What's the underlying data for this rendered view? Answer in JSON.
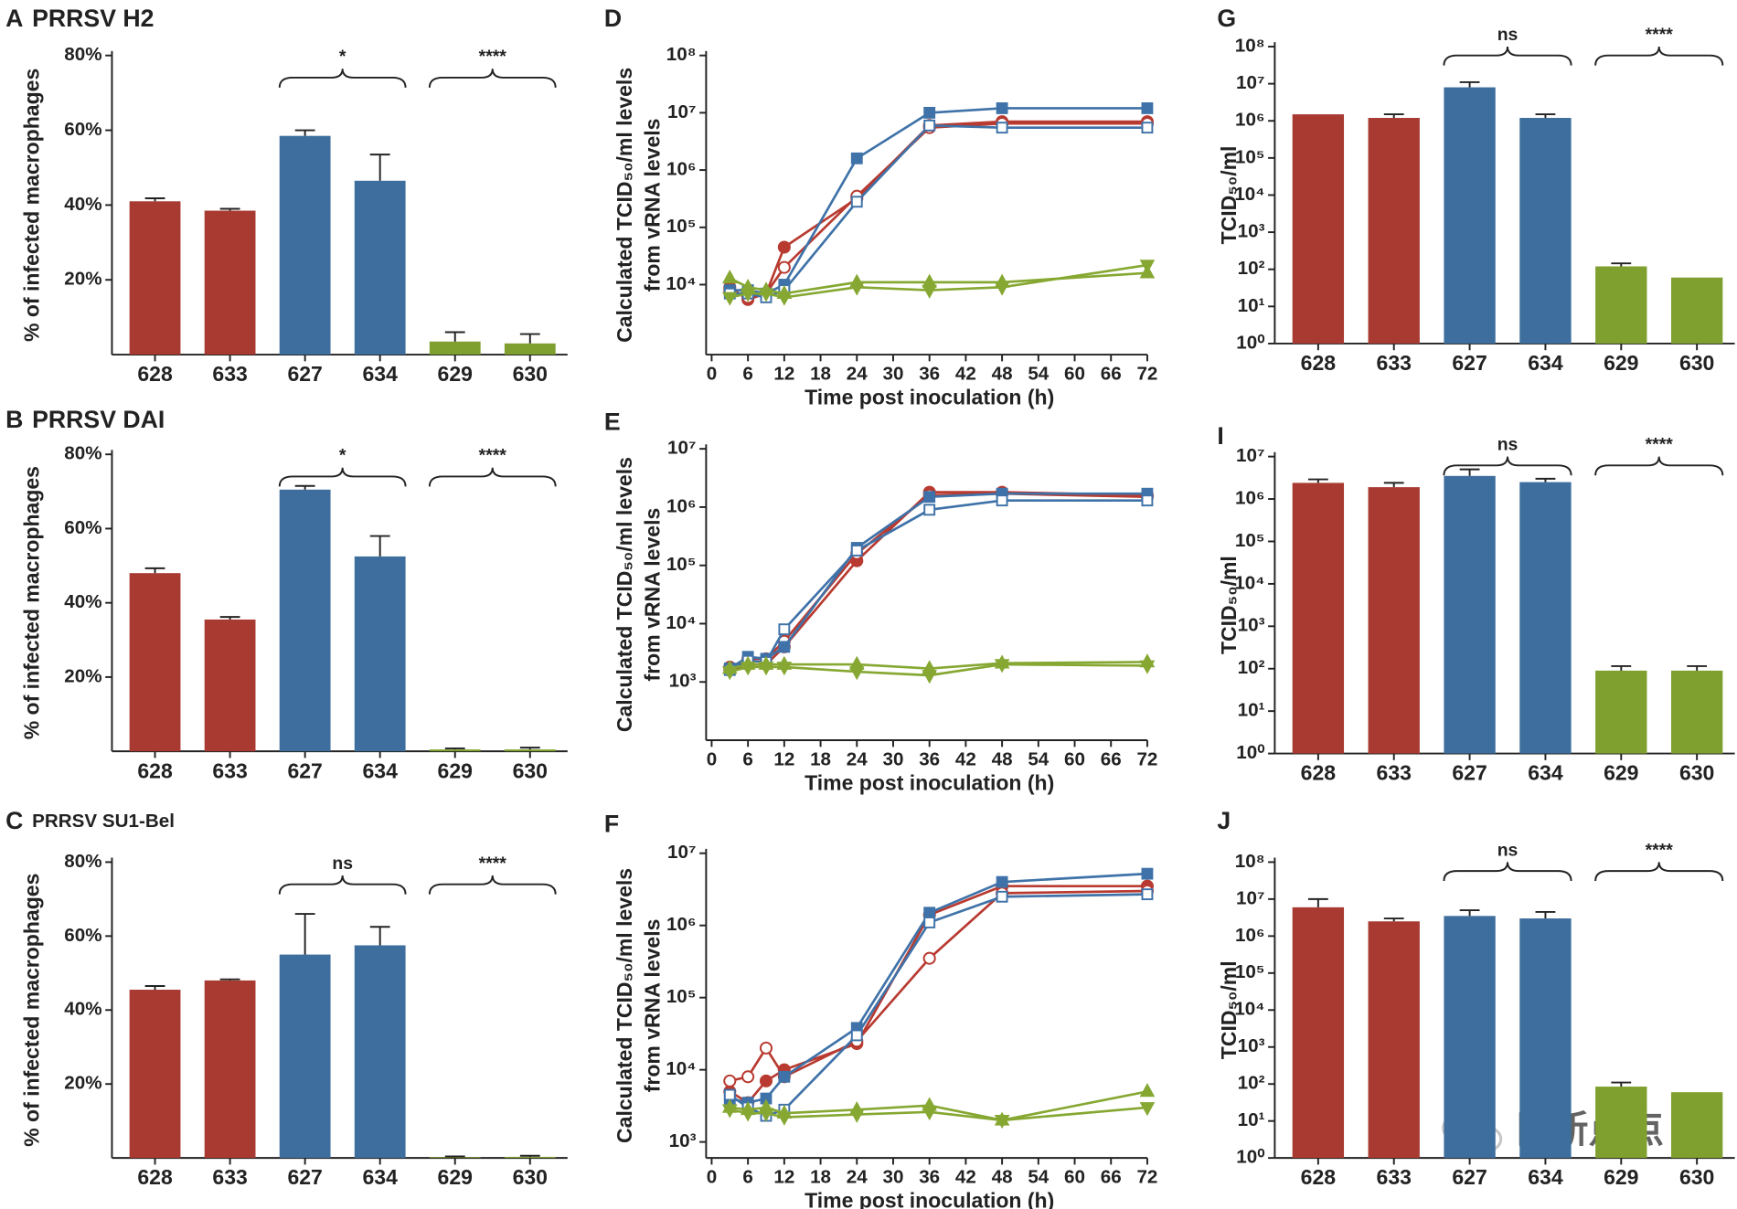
{
  "chart_data": [
    {
      "type": "bar",
      "panel": "A",
      "title": "PRRSV H2",
      "ylabel": "% of infected macrophages",
      "categories": [
        "628",
        "633",
        "627",
        "634",
        "629",
        "630"
      ],
      "values": [
        41,
        38.5,
        58.5,
        46.5,
        3.5,
        3
      ],
      "errors": [
        0.8,
        0.5,
        1.5,
        7,
        2.5,
        2.5
      ],
      "colors": [
        "#a83a32",
        "#a83a32",
        "#3e6e9e",
        "#3e6e9e",
        "#7f9f2e",
        "#7f9f2e"
      ],
      "ylim": [
        0,
        80
      ],
      "yticks": [
        {
          "value": 20,
          "label": "20%"
        },
        {
          "value": 40,
          "label": "40%"
        },
        {
          "value": 60,
          "label": "60%"
        },
        {
          "value": 80,
          "label": "80%"
        }
      ],
      "annotations": [
        {
          "text": "*",
          "span": [
            "627",
            "634"
          ]
        },
        {
          "text": "****",
          "span": [
            "629",
            "630"
          ]
        }
      ]
    },
    {
      "type": "bar",
      "panel": "B",
      "title": "PRRSV DAI",
      "ylabel": "% of infected macrophages",
      "categories": [
        "628",
        "633",
        "627",
        "634",
        "629",
        "630"
      ],
      "values": [
        48,
        35.5,
        70.5,
        52.5,
        0.5,
        0.5
      ],
      "errors": [
        1.3,
        0.7,
        1,
        5.5,
        0.3,
        0.5
      ],
      "colors": [
        "#a83a32",
        "#a83a32",
        "#3e6e9e",
        "#3e6e9e",
        "#7f9f2e",
        "#7f9f2e"
      ],
      "ylim": [
        0,
        80
      ],
      "yticks": [
        {
          "value": 20,
          "label": "20%"
        },
        {
          "value": 40,
          "label": "40%"
        },
        {
          "value": 60,
          "label": "60%"
        },
        {
          "value": 80,
          "label": "80%"
        }
      ],
      "annotations": [
        {
          "text": "*",
          "span": [
            "627",
            "634"
          ]
        },
        {
          "text": "****",
          "span": [
            "629",
            "630"
          ]
        }
      ]
    },
    {
      "type": "bar",
      "panel": "C",
      "title": "PRRSV SU1-Bel",
      "ylabel": "% of infected macrophages",
      "categories": [
        "628",
        "633",
        "627",
        "634",
        "629",
        "630"
      ],
      "values": [
        45.5,
        48,
        55,
        57.5,
        0.2,
        0.3
      ],
      "errors": [
        1,
        0.3,
        11,
        5,
        0.2,
        0.3
      ],
      "colors": [
        "#a83a32",
        "#a83a32",
        "#3e6e9e",
        "#3e6e9e",
        "#7f9f2e",
        "#7f9f2e"
      ],
      "ylim": [
        0,
        80
      ],
      "yticks": [
        {
          "value": 20,
          "label": "20%"
        },
        {
          "value": 40,
          "label": "40%"
        },
        {
          "value": 60,
          "label": "60%"
        },
        {
          "value": 80,
          "label": "80%"
        }
      ],
      "annotations": [
        {
          "text": "ns",
          "span": [
            "627",
            "634"
          ]
        },
        {
          "text": "****",
          "span": [
            "629",
            "630"
          ]
        }
      ]
    },
    {
      "type": "line",
      "panel": "D",
      "ylabel": [
        "Calculated TCID₅₀/ml levels",
        "from vRNA levels"
      ],
      "xlabel": "Time post inoculation (h)",
      "log_scale": true,
      "x": [
        3,
        6,
        9,
        12,
        24,
        36,
        48,
        72
      ],
      "xlim": [
        0,
        72
      ],
      "xticks": [
        0,
        6,
        12,
        18,
        24,
        30,
        36,
        42,
        48,
        54,
        60,
        66,
        72
      ],
      "ylim": [
        600,
        100000000
      ],
      "yticks": [
        {
          "value": 10000,
          "label": "10⁴"
        },
        {
          "value": 100000,
          "label": "10⁵"
        },
        {
          "value": 1000000,
          "label": "10⁶"
        },
        {
          "value": 10000000,
          "label": "10⁷"
        },
        {
          "value": 100000000,
          "label": "10⁸"
        }
      ],
      "series": [
        {
          "color": "#b83a30",
          "marker": "circle",
          "filled": true,
          "values": [
            9000,
            5500,
            7000,
            45000,
            320000,
            6000000,
            7000000,
            7000000
          ]
        },
        {
          "color": "#b83a30",
          "marker": "circle",
          "filled": false,
          "values": [
            8000,
            6000,
            7000,
            20000,
            350000,
            5500000,
            6500000,
            6500000
          ]
        },
        {
          "color": "#3f72a8",
          "marker": "square",
          "filled": true,
          "values": [
            8000,
            8000,
            7000,
            10000,
            1600000,
            10000000,
            12000000,
            12000000
          ]
        },
        {
          "color": "#3f72a8",
          "marker": "square",
          "filled": false,
          "values": [
            7000,
            7000,
            6000,
            8000,
            280000,
            6000000,
            5500000,
            5500000
          ]
        },
        {
          "color": "#86a832",
          "marker": "triangle-up",
          "filled": true,
          "values": [
            13000,
            9000,
            8000,
            7000,
            11000,
            11000,
            11000,
            16000
          ]
        },
        {
          "color": "#86a832",
          "marker": "triangle-down",
          "filled": true,
          "values": [
            6000,
            7000,
            7000,
            6000,
            9000,
            8000,
            9000,
            22000
          ]
        }
      ]
    },
    {
      "type": "line",
      "panel": "E",
      "ylabel": [
        "Calculated TCID₅₀/ml levels",
        "from vRNA levels"
      ],
      "xlabel": "Time post inoculation (h)",
      "log_scale": true,
      "x": [
        3,
        6,
        9,
        12,
        24,
        36,
        48,
        72
      ],
      "xlim": [
        0,
        72
      ],
      "xticks": [
        0,
        6,
        12,
        18,
        24,
        30,
        36,
        42,
        48,
        54,
        60,
        66,
        72
      ],
      "ylim": [
        100,
        10000000
      ],
      "yticks": [
        {
          "value": 1000,
          "label": "10³"
        },
        {
          "value": 10000,
          "label": "10⁴"
        },
        {
          "value": 100000,
          "label": "10⁵"
        },
        {
          "value": 1000000,
          "label": "10⁶"
        },
        {
          "value": 10000000,
          "label": "10⁷"
        }
      ],
      "series": [
        {
          "color": "#b83a30",
          "marker": "circle",
          "filled": true,
          "values": [
            1600,
            2000,
            2000,
            4000,
            120000,
            1800000,
            1800000,
            1600000
          ]
        },
        {
          "color": "#b83a30",
          "marker": "circle",
          "filled": false,
          "values": [
            1800,
            2500,
            2500,
            5000,
            160000,
            1600000,
            1700000,
            1500000
          ]
        },
        {
          "color": "#3f72a8",
          "marker": "square",
          "filled": true,
          "values": [
            1700,
            2700,
            2500,
            4000,
            200000,
            1500000,
            1700000,
            1700000
          ]
        },
        {
          "color": "#3f72a8",
          "marker": "square",
          "filled": false,
          "values": [
            1600,
            2300,
            2200,
            8000,
            180000,
            900000,
            1300000,
            1300000
          ]
        },
        {
          "color": "#86a832",
          "marker": "triangle-up",
          "filled": true,
          "values": [
            1700,
            2000,
            2000,
            2000,
            2000,
            1700,
            2100,
            2200
          ]
        },
        {
          "color": "#86a832",
          "marker": "triangle-down",
          "filled": true,
          "values": [
            1500,
            1800,
            1800,
            1800,
            1500,
            1300,
            2000,
            1900
          ]
        }
      ]
    },
    {
      "type": "line",
      "panel": "F",
      "ylabel": [
        "Calculated TCID₅₀/ml levels",
        "from vRNA levels"
      ],
      "xlabel": "Time post inoculation (h)",
      "log_scale": true,
      "x": [
        3,
        6,
        9,
        12,
        24,
        36,
        48,
        72
      ],
      "xlim": [
        0,
        72
      ],
      "xticks": [
        0,
        6,
        12,
        18,
        24,
        30,
        36,
        42,
        48,
        54,
        60,
        66,
        72
      ],
      "ylim": [
        600,
        10000000
      ],
      "yticks": [
        {
          "value": 1000,
          "label": "10³"
        },
        {
          "value": 10000,
          "label": "10⁴"
        },
        {
          "value": 100000,
          "label": "10⁵"
        },
        {
          "value": 1000000,
          "label": "10⁶"
        },
        {
          "value": 10000000,
          "label": "10⁷"
        }
      ],
      "series": [
        {
          "color": "#b83a30",
          "marker": "circle",
          "filled": true,
          "values": [
            5000,
            3500,
            7000,
            10000,
            23000,
            1400000,
            3500000,
            3500000
          ]
        },
        {
          "color": "#b83a30",
          "marker": "circle",
          "filled": false,
          "values": [
            7000,
            8000,
            20000,
            8000,
            25000,
            350000,
            2800000,
            3000000
          ]
        },
        {
          "color": "#3f72a8",
          "marker": "square",
          "filled": true,
          "values": [
            4000,
            3500,
            4000,
            8000,
            38000,
            1500000,
            4000000,
            5200000
          ]
        },
        {
          "color": "#3f72a8",
          "marker": "square",
          "filled": false,
          "values": [
            4500,
            3000,
            2300,
            2800,
            30000,
            1100000,
            2500000,
            2700000
          ]
        },
        {
          "color": "#86a832",
          "marker": "triangle-up",
          "filled": true,
          "values": [
            3000,
            2800,
            3000,
            2500,
            2800,
            3200,
            2000,
            5000
          ]
        },
        {
          "color": "#86a832",
          "marker": "triangle-down",
          "filled": true,
          "values": [
            2800,
            2500,
            2500,
            2200,
            2400,
            2600,
            2000,
            3000
          ]
        }
      ]
    },
    {
      "type": "bar",
      "panel": "G",
      "ylabel": "TCID₅₀/ml",
      "log_scale": true,
      "categories": [
        "628",
        "633",
        "627",
        "634",
        "629",
        "630"
      ],
      "values": [
        1500000,
        1200000,
        8000000,
        1200000,
        120,
        60
      ],
      "errors": [
        0,
        300000,
        3000000,
        300000,
        25,
        0
      ],
      "colors": [
        "#a83a32",
        "#a83a32",
        "#3e6e9e",
        "#3e6e9e",
        "#7f9f2e",
        "#7f9f2e"
      ],
      "ylim": [
        1,
        100000000
      ],
      "yticks": [
        {
          "value": 1,
          "label": "10⁰"
        },
        {
          "value": 10,
          "label": "10¹"
        },
        {
          "value": 100,
          "label": "10²"
        },
        {
          "value": 1000,
          "label": "10³"
        },
        {
          "value": 10000,
          "label": "10⁴"
        },
        {
          "value": 100000,
          "label": "10⁵"
        },
        {
          "value": 1000000,
          "label": "10⁶"
        },
        {
          "value": 10000000,
          "label": "10⁷"
        },
        {
          "value": 100000000,
          "label": "10⁸"
        }
      ],
      "annotations": [
        {
          "text": "ns",
          "span": [
            "627",
            "634"
          ]
        },
        {
          "text": "****",
          "span": [
            "629",
            "630"
          ]
        }
      ]
    },
    {
      "type": "bar",
      "panel": "I",
      "ylabel": "TCID₅₀/ml",
      "log_scale": true,
      "categories": [
        "628",
        "633",
        "627",
        "634",
        "629",
        "630"
      ],
      "values": [
        2400000,
        1900000,
        3500000,
        2500000,
        90,
        90
      ],
      "errors": [
        500000,
        500000,
        1500000,
        500000,
        25,
        25
      ],
      "colors": [
        "#a83a32",
        "#a83a32",
        "#3e6e9e",
        "#3e6e9e",
        "#7f9f2e",
        "#7f9f2e"
      ],
      "ylim": [
        1,
        10000000
      ],
      "yticks": [
        {
          "value": 1,
          "label": "10⁰"
        },
        {
          "value": 10,
          "label": "10¹"
        },
        {
          "value": 100,
          "label": "10²"
        },
        {
          "value": 1000,
          "label": "10³"
        },
        {
          "value": 10000,
          "label": "10⁴"
        },
        {
          "value": 100000,
          "label": "10⁵"
        },
        {
          "value": 1000000,
          "label": "10⁶"
        },
        {
          "value": 10000000,
          "label": "10⁷"
        }
      ],
      "annotations": [
        {
          "text": "ns",
          "span": [
            "627",
            "634"
          ]
        },
        {
          "text": "****",
          "span": [
            "629",
            "630"
          ]
        }
      ]
    },
    {
      "type": "bar",
      "panel": "J",
      "ylabel": "TCID₅₀/ml",
      "log_scale": true,
      "categories": [
        "628",
        "633",
        "627",
        "634",
        "629",
        "630"
      ],
      "values": [
        6000000,
        2500000,
        3500000,
        3000000,
        85,
        60
      ],
      "errors": [
        4000000,
        500000,
        1500000,
        1500000,
        25,
        0
      ],
      "colors": [
        "#a83a32",
        "#a83a32",
        "#3e6e9e",
        "#3e6e9e",
        "#7f9f2e",
        "#7f9f2e"
      ],
      "ylim": [
        1,
        100000000
      ],
      "yticks": [
        {
          "value": 1,
          "label": "10⁰"
        },
        {
          "value": 10,
          "label": "10¹"
        },
        {
          "value": 100,
          "label": "10²"
        },
        {
          "value": 1000,
          "label": "10³"
        },
        {
          "value": 10000,
          "label": "10⁴"
        },
        {
          "value": 100000,
          "label": "10⁵"
        },
        {
          "value": 1000000,
          "label": "10⁶"
        },
        {
          "value": 10000000,
          "label": "10⁷"
        },
        {
          "value": 100000000,
          "label": "10⁸"
        }
      ],
      "annotations": [
        {
          "text": "ns",
          "span": [
            "627",
            "634"
          ]
        },
        {
          "text": "****",
          "span": [
            "629",
            "630"
          ]
        }
      ]
    }
  ],
  "watermark": "日新点点"
}
